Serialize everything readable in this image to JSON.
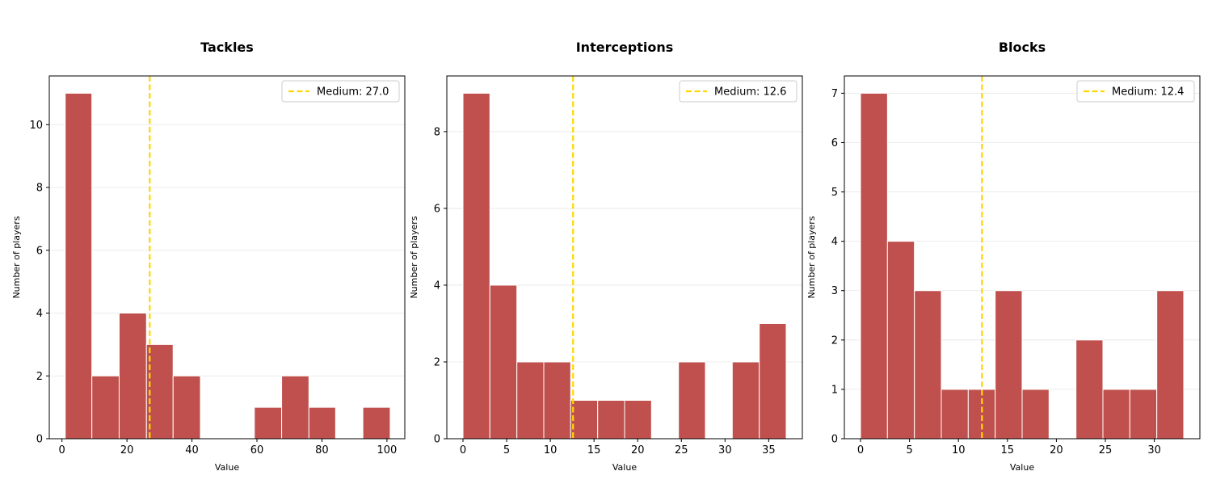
{
  "chart_data": [
    {
      "type": "bar",
      "title": "Tackles",
      "xlabel": "Value",
      "ylabel": "Number of players",
      "bin_edges": [
        1.0,
        9.2,
        17.6,
        26.0,
        34.2,
        42.6,
        51.0,
        59.2,
        67.6,
        76.0,
        84.2,
        92.6,
        101.0
      ],
      "values": [
        11,
        2,
        4,
        3,
        2,
        0,
        0,
        1,
        2,
        1,
        0,
        1
      ],
      "xlim": [
        -3.9,
        105.5
      ],
      "ylim": [
        0,
        11.55
      ],
      "xticks": [
        0,
        20,
        40,
        60,
        80,
        100
      ],
      "yticks": [
        0,
        2,
        4,
        6,
        8,
        10
      ],
      "median_value": 27.0,
      "legend_label": "Medium: 27.0",
      "legend_position": "top-right",
      "grid": "y"
    },
    {
      "type": "bar",
      "title": "Interceptions",
      "xlabel": "Value",
      "ylabel": "Number of players",
      "bin_edges": [
        0.0,
        3.08,
        6.17,
        9.25,
        12.33,
        15.42,
        18.5,
        21.58,
        24.67,
        27.75,
        30.83,
        33.92,
        37.0
      ],
      "values": [
        9,
        4,
        2,
        2,
        1,
        1,
        1,
        0,
        2,
        0,
        2,
        3
      ],
      "xlim": [
        -1.85,
        38.85
      ],
      "ylim": [
        0,
        9.45
      ],
      "xticks": [
        0,
        5,
        10,
        15,
        20,
        25,
        30,
        35
      ],
      "yticks": [
        0,
        2,
        4,
        6,
        8
      ],
      "median_value": 12.6,
      "legend_label": "Medium: 12.6",
      "legend_position": "top-right",
      "grid": "y"
    },
    {
      "type": "bar",
      "title": "Blocks",
      "xlabel": "Value",
      "ylabel": "Number of players",
      "bin_edges": [
        0.0,
        2.75,
        5.5,
        8.25,
        11.0,
        13.75,
        16.5,
        19.25,
        22.0,
        24.75,
        27.5,
        30.25,
        33.0
      ],
      "values": [
        7,
        4,
        3,
        1,
        1,
        3,
        1,
        0,
        2,
        1,
        1,
        3
      ],
      "xlim": [
        -1.65,
        34.65
      ],
      "ylim": [
        0,
        7.35
      ],
      "xticks": [
        0,
        5,
        10,
        15,
        20,
        25,
        30
      ],
      "yticks": [
        0,
        1,
        2,
        3,
        4,
        5,
        6,
        7
      ],
      "median_value": 12.4,
      "legend_label": "Medium: 12.4",
      "legend_position": "top-right",
      "grid": "y"
    }
  ],
  "colors": {
    "bar_fill": "#c0504d",
    "bar_edge": "#ffffff",
    "median_line": "#ffd700",
    "grid": "#e6e6e6",
    "axes": "#000000"
  }
}
